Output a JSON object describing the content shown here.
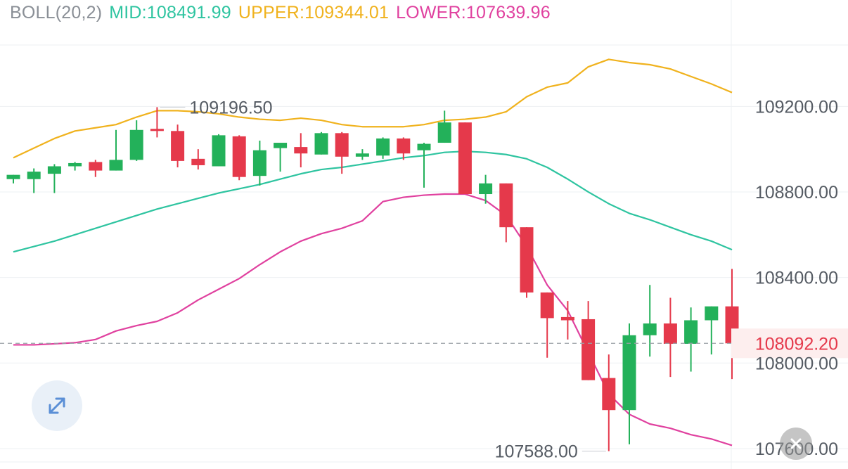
{
  "indicator": {
    "name": "BOLL(20,2)",
    "mid_label": "MID:108491.99",
    "upper_label": "UPPER:109344.01",
    "lower_label": "LOWER:107639.96"
  },
  "colors": {
    "name": "#8a8f96",
    "mid": "#2ec4a0",
    "upper": "#f0b21d",
    "lower": "#e0419f",
    "up": "#23b15a",
    "down": "#e5394b",
    "current_price_bg": "#fdeeee",
    "current_price_text": "#e5394b",
    "axis_text": "#555b63",
    "grid": "#eef0f3"
  },
  "chart_data": {
    "type": "candlestick",
    "y_ticks": [
      109200,
      108800,
      108400,
      108000,
      107600
    ],
    "y_tick_labels": [
      "109200.00",
      "108800.00",
      "108400.00",
      "108000.00",
      "107600.00"
    ],
    "ylim": [
      107544,
      109566
    ],
    "grid": true,
    "current_price": 108092.2,
    "current_price_label": "108092.20",
    "high_marker": {
      "index": 7,
      "value": 109196.5,
      "label": "109196.50"
    },
    "low_marker": {
      "index": 29,
      "value": 107588.0,
      "label": "107588.00"
    },
    "candles": [
      {
        "o": 108860,
        "h": 108880,
        "l": 108840,
        "c": 108880
      },
      {
        "o": 108860,
        "h": 108910,
        "l": 108795,
        "c": 108895
      },
      {
        "o": 108885,
        "h": 108930,
        "l": 108795,
        "c": 108920
      },
      {
        "o": 108920,
        "h": 108940,
        "l": 108900,
        "c": 108935
      },
      {
        "o": 108940,
        "h": 108950,
        "l": 108870,
        "c": 108900
      },
      {
        "o": 108900,
        "h": 109090,
        "l": 108900,
        "c": 108950
      },
      {
        "o": 108950,
        "h": 109135,
        "l": 108945,
        "c": 109090
      },
      {
        "o": 109095,
        "h": 109196.5,
        "l": 109055,
        "c": 109085
      },
      {
        "o": 109085,
        "h": 109115,
        "l": 108915,
        "c": 108945
      },
      {
        "o": 108955,
        "h": 109000,
        "l": 108905,
        "c": 108925
      },
      {
        "o": 108920,
        "h": 109070,
        "l": 108920,
        "c": 109065
      },
      {
        "o": 109060,
        "h": 109065,
        "l": 108855,
        "c": 108870
      },
      {
        "o": 108875,
        "h": 109040,
        "l": 108830,
        "c": 108995
      },
      {
        "o": 109005,
        "h": 109025,
        "l": 108895,
        "c": 109030
      },
      {
        "o": 109010,
        "h": 109075,
        "l": 108915,
        "c": 108980
      },
      {
        "o": 108975,
        "h": 109080,
        "l": 108975,
        "c": 109075
      },
      {
        "o": 109075,
        "h": 109080,
        "l": 108885,
        "c": 108965
      },
      {
        "o": 108965,
        "h": 109000,
        "l": 108950,
        "c": 108980
      },
      {
        "o": 108970,
        "h": 109055,
        "l": 108955,
        "c": 109050
      },
      {
        "o": 109050,
        "h": 109055,
        "l": 108950,
        "c": 108980
      },
      {
        "o": 108995,
        "h": 109030,
        "l": 108820,
        "c": 109025
      },
      {
        "o": 109030,
        "h": 109180,
        "l": 109030,
        "c": 109125
      },
      {
        "o": 109125,
        "h": 109125,
        "l": 108790,
        "c": 108790
      },
      {
        "o": 108790,
        "h": 108880,
        "l": 108745,
        "c": 108840
      },
      {
        "o": 108840,
        "h": 108840,
        "l": 108565,
        "c": 108635
      },
      {
        "o": 108635,
        "h": 108635,
        "l": 108305,
        "c": 108330
      },
      {
        "o": 108330,
        "h": 108330,
        "l": 108025,
        "c": 108210
      },
      {
        "o": 108215,
        "h": 108290,
        "l": 108110,
        "c": 108200
      },
      {
        "o": 108205,
        "h": 108290,
        "l": 107920,
        "c": 107920
      },
      {
        "o": 107930,
        "h": 108040,
        "l": 107588,
        "c": 107780
      },
      {
        "o": 107780,
        "h": 108185,
        "l": 107620,
        "c": 108130
      },
      {
        "o": 108130,
        "h": 108365,
        "l": 108030,
        "c": 108185
      },
      {
        "o": 108185,
        "h": 108305,
        "l": 107935,
        "c": 108090
      },
      {
        "o": 108090,
        "h": 108260,
        "l": 107960,
        "c": 108200
      },
      {
        "o": 108200,
        "h": 108265,
        "l": 108040,
        "c": 108265
      },
      {
        "o": 108265,
        "h": 108440,
        "l": 107925,
        "c": 108092.2
      }
    ],
    "series": [
      {
        "name": "UPPER",
        "values": [
          108960,
          109005,
          109050,
          109085,
          109100,
          109115,
          109150,
          109180,
          109180,
          109175,
          109165,
          109150,
          109140,
          109135,
          109145,
          109135,
          109115,
          109105,
          109105,
          109105,
          109115,
          109135,
          109140,
          109150,
          109175,
          109245,
          109290,
          109310,
          109385,
          109420,
          109405,
          109395,
          109375,
          109340,
          109305,
          109265
        ]
      },
      {
        "name": "MID",
        "values": [
          108520,
          108545,
          108570,
          108600,
          108630,
          108660,
          108690,
          108720,
          108745,
          108770,
          108795,
          108815,
          108835,
          108860,
          108885,
          108905,
          108915,
          108930,
          108945,
          108960,
          108970,
          108985,
          108990,
          108985,
          108975,
          108955,
          108915,
          108860,
          108800,
          108745,
          108700,
          108670,
          108635,
          108600,
          108570,
          108530
        ]
      },
      {
        "name": "LOWER",
        "values": [
          108085,
          108085,
          108090,
          108095,
          108110,
          108150,
          108175,
          108195,
          108235,
          108295,
          108345,
          108395,
          108460,
          108520,
          108570,
          108605,
          108630,
          108665,
          108755,
          108775,
          108785,
          108790,
          108790,
          108760,
          108690,
          108545,
          108365,
          108245,
          108050,
          107855,
          107760,
          107715,
          107695,
          107665,
          107645,
          107615
        ]
      }
    ]
  }
}
